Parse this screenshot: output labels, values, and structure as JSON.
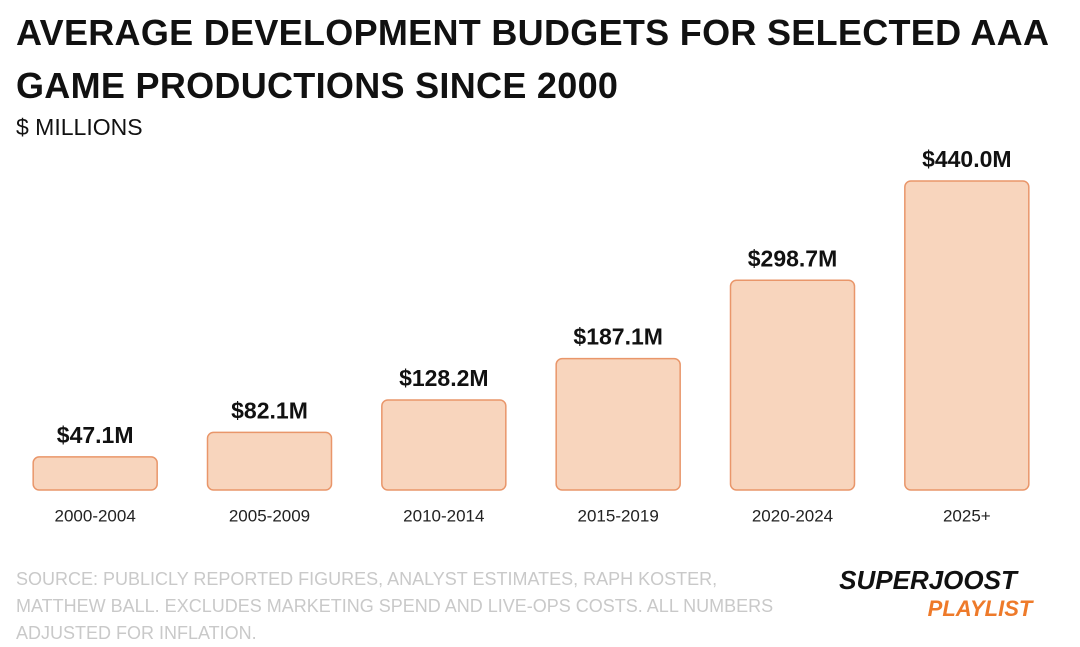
{
  "chart_data": {
    "type": "bar",
    "title": "AVERAGE DEVELOPMENT BUDGETS FOR SELECTED AAA GAME PRODUCTIONS SINCE 2000",
    "subtitle": "$ MILLIONS",
    "categories": [
      "2000-2004",
      "2005-2009",
      "2010-2014",
      "2015-2019",
      "2020-2024",
      "2025+"
    ],
    "values": [
      47.1,
      82.1,
      128.2,
      187.1,
      298.7,
      440.0
    ],
    "value_labels": [
      "$47.1M",
      "$82.1M",
      "$128.2M",
      "$187.1M",
      "$298.7M",
      "$440.0M"
    ],
    "color": "#f8d5bd",
    "edge_color": "#e9966a",
    "source": "SOURCE: PUBLICLY REPORTED FIGURES, ANALYST ESTIMATES, RAPH KOSTER, MATTHEW BALL. EXCLUDES MARKETING SPEND AND LIVE-OPS COSTS. ALL NUMBERS ADJUSTED FOR INFLATION.",
    "logo": [
      "SUPERJOOST",
      "PLAYLIST"
    ]
  }
}
